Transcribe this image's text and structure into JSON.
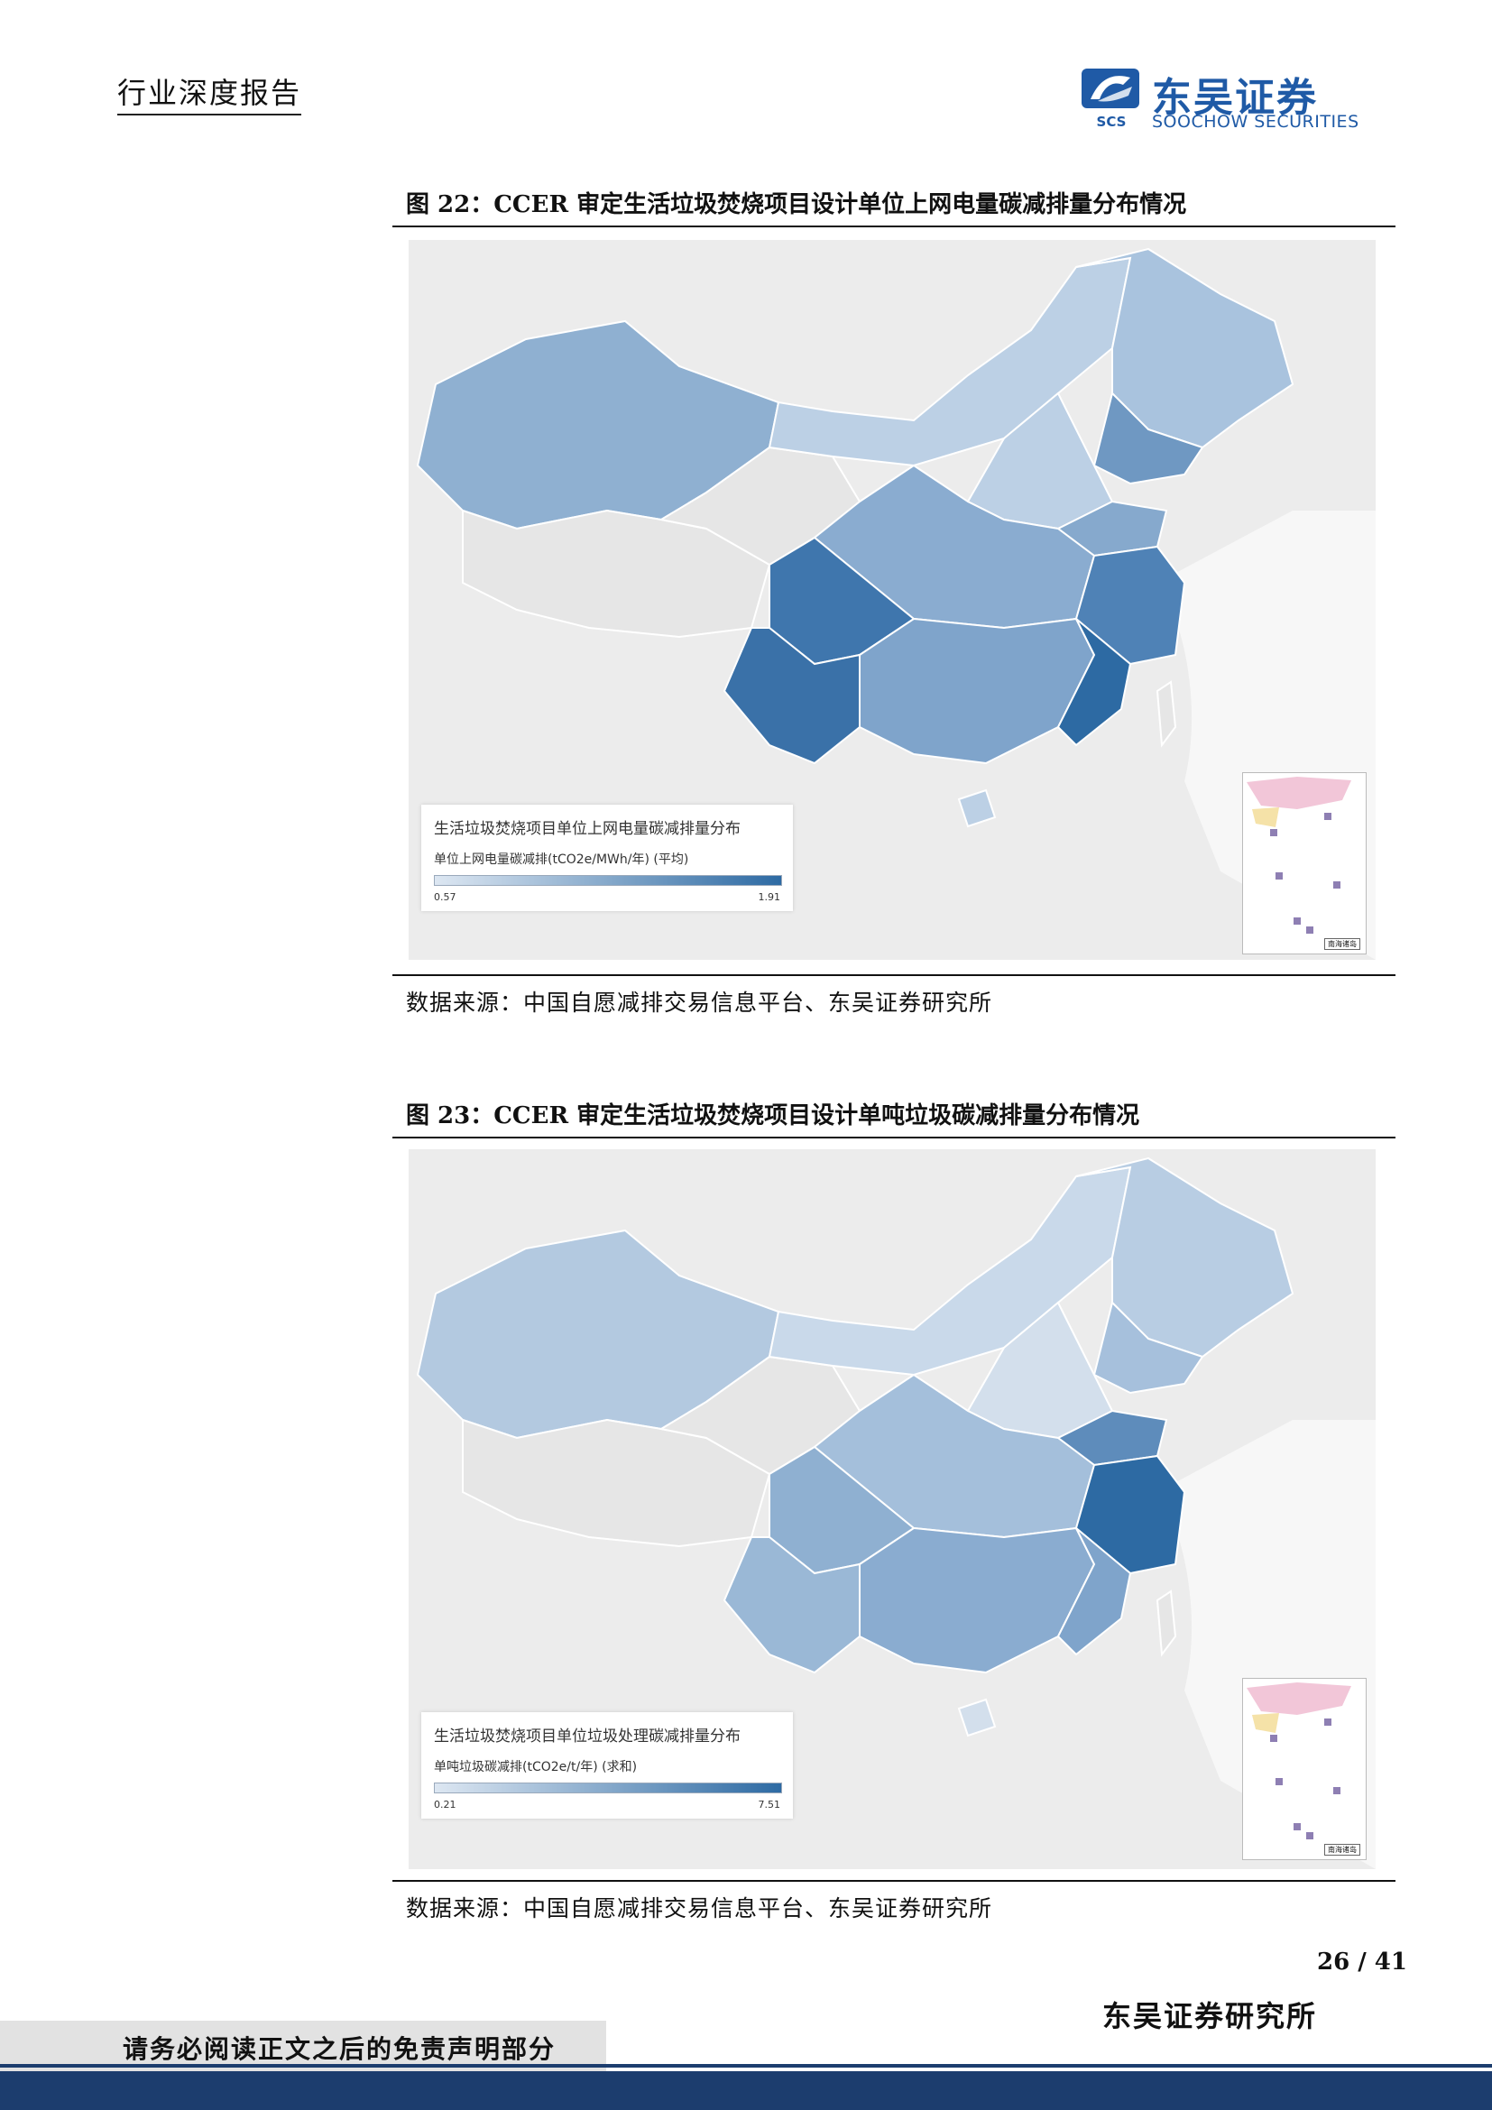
{
  "header": {
    "report_type": "行业深度报告",
    "logo_cn": "东吴证券",
    "logo_en": "SOOCHOW SECURITIES",
    "logo_mark": "SCS"
  },
  "figures": [
    {
      "title": "图 22：CCER 审定生活垃圾焚烧项目设计单位上网电量碳减排量分布情况",
      "legend_title": "生活垃圾焚烧项目单位上网电量碳减排量分布",
      "legend_subtitle": "单位上网电量碳减排(tCO2e/MWh/年) (平均)",
      "legend_min": "0.57",
      "legend_max": "1.91",
      "scale_colors": [
        "#dde7f2",
        "#2d6aa3"
      ],
      "source": "数据来源：中国自愿减排交易信息平台、东吴证券研究所",
      "inset_label": "南海诸岛"
    },
    {
      "title": "图 23：CCER 审定生活垃圾焚烧项目设计单吨垃圾碳减排量分布情况",
      "legend_title": "生活垃圾焚烧项目单位垃圾处理碳减排量分布",
      "legend_subtitle": "单吨垃圾碳减排(tCO2e/t/年) (求和)",
      "legend_min": "0.21",
      "legend_max": "7.51",
      "scale_colors": [
        "#dde7f2",
        "#2d6aa3"
      ],
      "source": "数据来源：中国自愿减排交易信息平台、东吴证券研究所",
      "inset_label": "南海诸岛"
    }
  ],
  "footer": {
    "page": "26 / 41",
    "org": "东吴证券研究所",
    "disclaimer": "请务必阅读正文之后的免责声明部分"
  }
}
